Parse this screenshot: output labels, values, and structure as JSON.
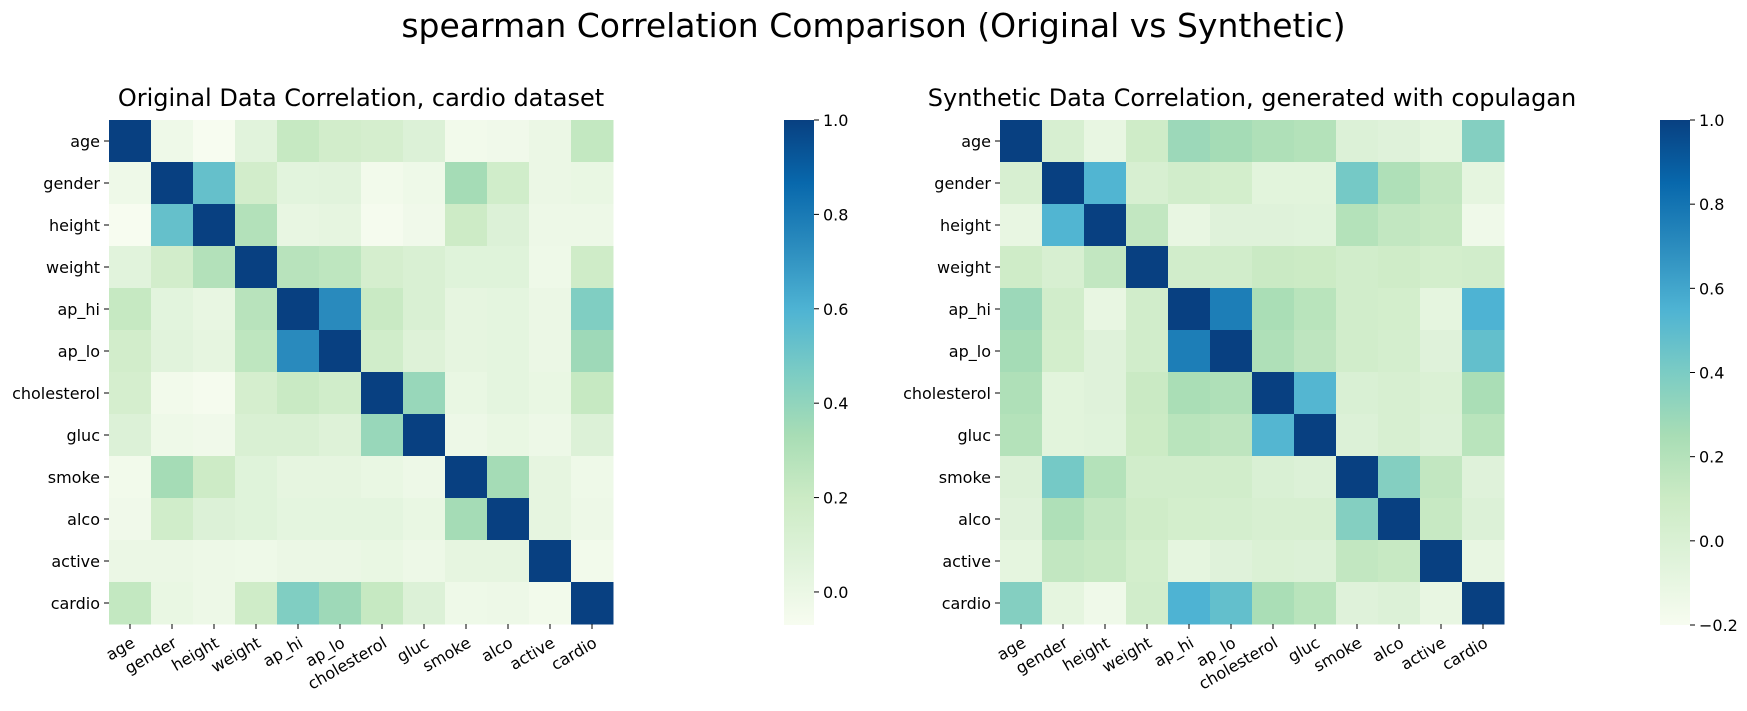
{
  "figure": {
    "suptitle": "spearman Correlation Comparison (Original vs Synthetic)"
  },
  "chart_data": [
    {
      "type": "heatmap",
      "title": "Original Data Correlation, cardio dataset",
      "x_categories": [
        "age",
        "gender",
        "height",
        "weight",
        "ap_hi",
        "ap_lo",
        "cholesterol",
        "gluc",
        "smoke",
        "alco",
        "active",
        "cardio"
      ],
      "y_categories": [
        "age",
        "gender",
        "height",
        "weight",
        "ap_hi",
        "ap_lo",
        "cholesterol",
        "gluc",
        "smoke",
        "alco",
        "active",
        "cardio"
      ],
      "colorscale": "GnBu",
      "vmin": -0.07,
      "vmax": 1.0,
      "colorbar_ticks": [
        "0.0",
        "0.2",
        "0.4",
        "0.6",
        "0.8",
        "1.0"
      ],
      "values": [
        [
          1.0,
          -0.02,
          -0.07,
          0.06,
          0.22,
          0.16,
          0.14,
          0.09,
          -0.04,
          -0.03,
          0.0,
          0.23
        ],
        [
          -0.02,
          1.0,
          0.53,
          0.16,
          0.05,
          0.06,
          -0.04,
          -0.02,
          0.34,
          0.17,
          0.0,
          0.01
        ],
        [
          -0.07,
          0.53,
          1.0,
          0.29,
          0.02,
          0.03,
          -0.06,
          -0.03,
          0.19,
          0.09,
          -0.01,
          -0.01
        ],
        [
          0.06,
          0.16,
          0.29,
          1.0,
          0.27,
          0.25,
          0.14,
          0.11,
          0.07,
          0.07,
          -0.02,
          0.18
        ],
        [
          0.22,
          0.05,
          0.02,
          0.27,
          1.0,
          0.74,
          0.21,
          0.11,
          0.03,
          0.04,
          0.0,
          0.45
        ],
        [
          0.16,
          0.06,
          0.03,
          0.25,
          0.74,
          1.0,
          0.17,
          0.08,
          0.03,
          0.04,
          0.0,
          0.36
        ],
        [
          0.14,
          -0.04,
          -0.06,
          0.14,
          0.21,
          0.17,
          1.0,
          0.38,
          0.01,
          0.04,
          0.01,
          0.22
        ],
        [
          0.09,
          -0.02,
          -0.03,
          0.11,
          0.11,
          0.08,
          0.38,
          1.0,
          -0.01,
          0.01,
          -0.01,
          0.09
        ],
        [
          -0.04,
          0.34,
          0.19,
          0.07,
          0.03,
          0.03,
          0.01,
          -0.01,
          1.0,
          0.34,
          0.03,
          -0.02
        ],
        [
          -0.03,
          0.17,
          0.09,
          0.07,
          0.04,
          0.04,
          0.04,
          0.01,
          0.34,
          1.0,
          0.03,
          -0.01
        ],
        [
          0.0,
          0.0,
          -0.01,
          -0.02,
          0.0,
          0.0,
          0.01,
          -0.01,
          0.03,
          0.03,
          1.0,
          -0.04
        ],
        [
          0.23,
          0.01,
          -0.01,
          0.18,
          0.45,
          0.36,
          0.22,
          0.09,
          -0.02,
          -0.01,
          -0.04,
          1.0
        ]
      ]
    },
    {
      "type": "heatmap",
      "title": "Synthetic Data Correlation, generated with copulagan",
      "x_categories": [
        "age",
        "gender",
        "height",
        "weight",
        "ap_hi",
        "ap_lo",
        "cholesterol",
        "gluc",
        "smoke",
        "alco",
        "active",
        "cardio"
      ],
      "y_categories": [
        "age",
        "gender",
        "height",
        "weight",
        "ap_hi",
        "ap_lo",
        "cholesterol",
        "gluc",
        "smoke",
        "alco",
        "active",
        "cardio"
      ],
      "colorscale": "GnBu",
      "vmin": -0.2,
      "vmax": 1.0,
      "colorbar_ticks": [
        "−0.2",
        "0.0",
        "0.2",
        "0.4",
        "0.6",
        "0.8",
        "1.0"
      ],
      "values": [
        [
          1.0,
          0.02,
          -0.1,
          0.08,
          0.29,
          0.26,
          0.22,
          0.2,
          -0.02,
          -0.04,
          -0.08,
          0.37
        ],
        [
          0.02,
          1.0,
          0.54,
          0.02,
          0.06,
          0.05,
          -0.06,
          -0.06,
          0.42,
          0.22,
          0.14,
          -0.08
        ],
        [
          -0.1,
          0.54,
          1.0,
          0.14,
          -0.1,
          -0.04,
          -0.04,
          -0.05,
          0.2,
          0.14,
          0.12,
          -0.15
        ],
        [
          0.08,
          0.02,
          0.14,
          1.0,
          0.06,
          0.06,
          0.11,
          0.1,
          0.06,
          0.08,
          0.05,
          0.06
        ],
        [
          0.29,
          0.06,
          -0.1,
          0.06,
          1.0,
          0.76,
          0.24,
          0.18,
          0.06,
          0.05,
          -0.08,
          0.55
        ],
        [
          0.26,
          0.05,
          -0.04,
          0.06,
          0.76,
          1.0,
          0.22,
          0.16,
          0.06,
          0.04,
          -0.04,
          0.48
        ],
        [
          0.22,
          -0.06,
          -0.04,
          0.11,
          0.24,
          0.22,
          1.0,
          0.53,
          0.0,
          0.02,
          -0.01,
          0.24
        ],
        [
          0.2,
          -0.06,
          -0.05,
          0.1,
          0.18,
          0.16,
          0.53,
          1.0,
          -0.02,
          0.02,
          -0.02,
          0.18
        ],
        [
          -0.02,
          0.42,
          0.2,
          0.06,
          0.06,
          0.06,
          0.0,
          -0.02,
          1.0,
          0.37,
          0.14,
          -0.04
        ],
        [
          -0.04,
          0.22,
          0.14,
          0.08,
          0.05,
          0.04,
          0.02,
          0.02,
          0.37,
          1.0,
          0.12,
          -0.02
        ],
        [
          -0.08,
          0.14,
          0.12,
          0.05,
          -0.08,
          -0.04,
          -0.01,
          -0.02,
          0.14,
          0.12,
          1.0,
          -0.1
        ],
        [
          0.37,
          -0.08,
          -0.15,
          0.06,
          0.55,
          0.48,
          0.24,
          0.18,
          -0.04,
          -0.02,
          -0.1,
          1.0
        ]
      ]
    }
  ]
}
